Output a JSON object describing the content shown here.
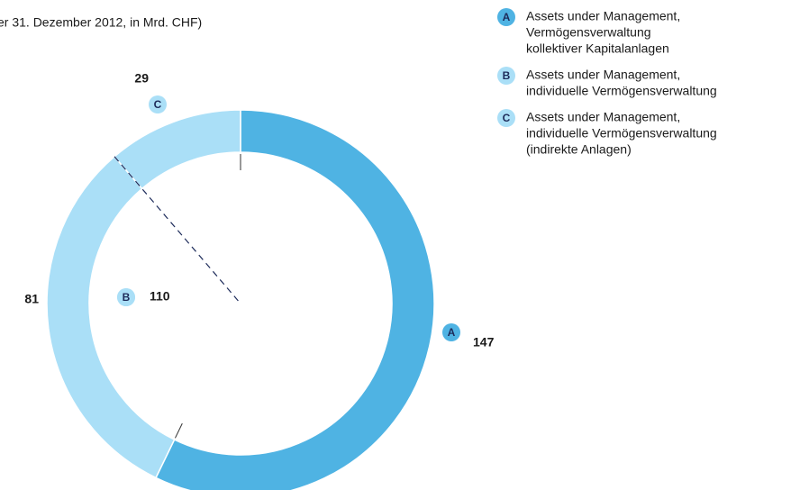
{
  "chart_data": {
    "type": "donut",
    "title": "er 31. Dezember 2012, in Mrd. CHF)",
    "categories": [
      "A",
      "B",
      "C"
    ],
    "values": [
      147,
      81,
      29
    ],
    "colors": [
      "#4fb3e3",
      "#aadff7",
      "#aadff7"
    ],
    "legend": [
      [
        "Assets under Management,",
        "Vermögensverwaltung",
        "kollektiver Kapitalanlagen"
      ],
      [
        "Assets under Management,",
        "individuelle Vermögensverwaltung"
      ],
      [
        "Assets under Management,",
        "individuelle Vermögensverwaltung",
        "(indirekte Anlagen)"
      ]
    ],
    "inner_label": {
      "letter": "B",
      "value": 110
    }
  }
}
